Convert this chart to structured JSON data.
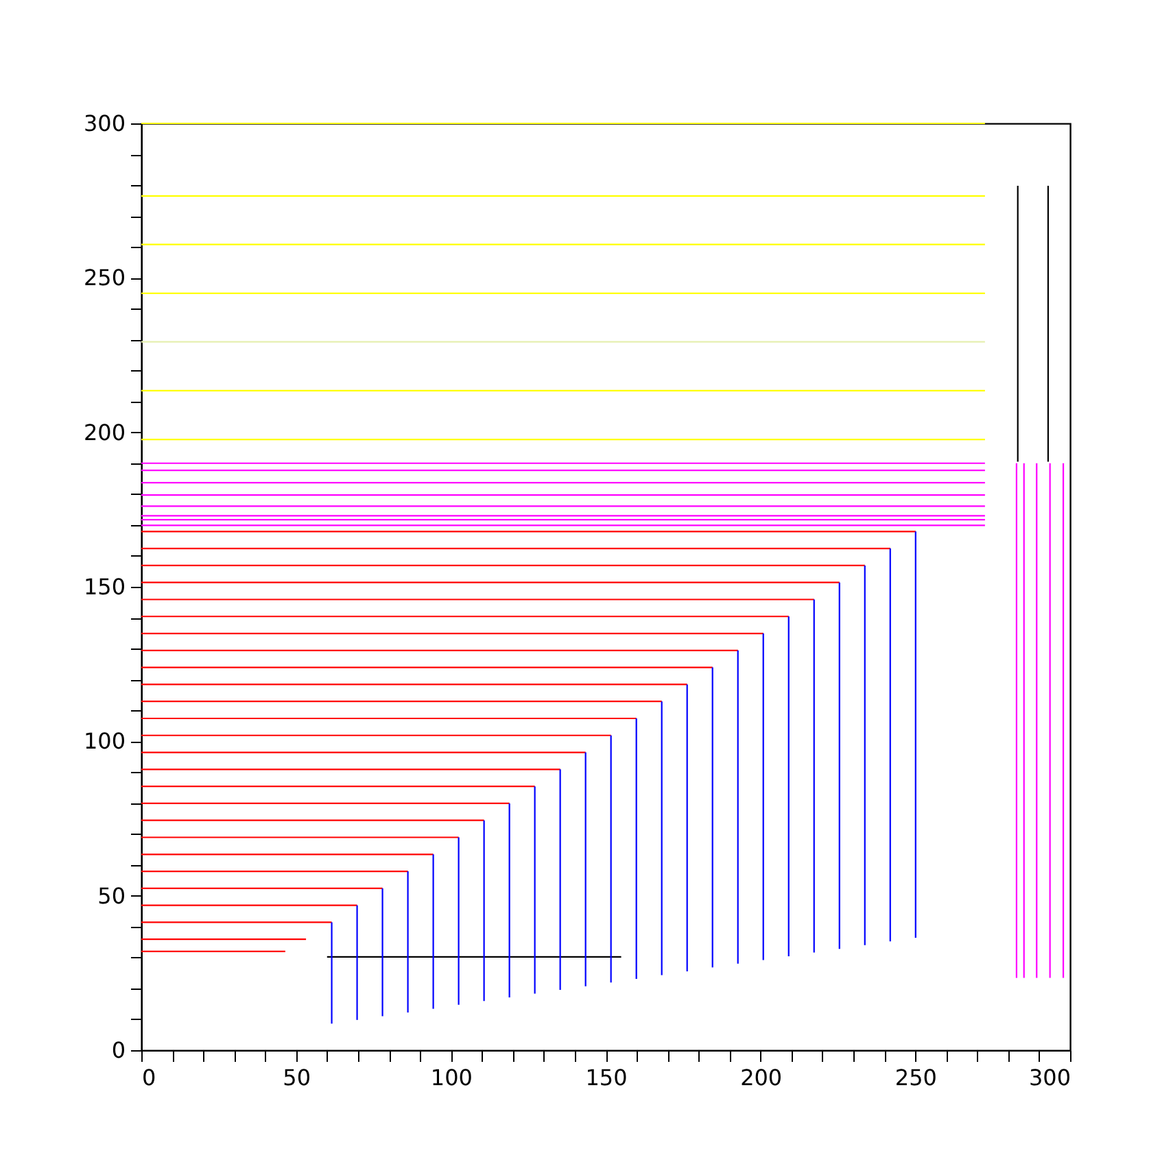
{
  "chart_data": {
    "type": "line",
    "xlim": [
      0,
      300
    ],
    "ylim": [
      0,
      300
    ],
    "xticks": [
      0,
      {
        "value": 10,
        "label": null
      },
      {
        "value": 20,
        "label": null
      },
      {
        "value": 30,
        "label": null
      },
      {
        "value": 40,
        "label": null
      },
      50,
      {
        "value": 60,
        "label": null
      },
      {
        "value": 70,
        "label": null
      },
      {
        "value": 80,
        "label": null
      },
      {
        "value": 90,
        "label": null
      },
      100,
      {
        "value": 110,
        "label": null
      },
      {
        "value": 120,
        "label": null
      },
      {
        "value": 130,
        "label": null
      },
      {
        "value": 140,
        "label": null
      },
      150,
      {
        "value": 160,
        "label": null
      },
      {
        "value": 170,
        "label": null
      },
      {
        "value": 180,
        "label": null
      },
      {
        "value": 190,
        "label": null
      },
      200,
      {
        "value": 210,
        "label": null
      },
      {
        "value": 220,
        "label": null
      },
      {
        "value": 230,
        "label": null
      },
      {
        "value": 240,
        "label": null
      },
      250,
      {
        "value": 260,
        "label": null
      },
      {
        "value": 270,
        "label": null
      },
      {
        "value": 280,
        "label": null
      },
      {
        "value": 290,
        "label": null
      },
      300
    ],
    "yticks": [
      0,
      {
        "value": 10,
        "label": null
      },
      {
        "value": 20,
        "label": null
      },
      {
        "value": 30,
        "label": null
      },
      {
        "value": 40,
        "label": null
      },
      50,
      {
        "value": 60,
        "label": null
      },
      {
        "value": 70,
        "label": null
      },
      {
        "value": 80,
        "label": null
      },
      {
        "value": 90,
        "label": null
      },
      100,
      {
        "value": 110,
        "label": null
      },
      {
        "value": 120,
        "label": null
      },
      {
        "value": 130,
        "label": null
      },
      {
        "value": 140,
        "label": null
      },
      150,
      {
        "value": 160,
        "label": null
      },
      {
        "value": 170,
        "label": null
      },
      {
        "value": 180,
        "label": null
      },
      {
        "value": 190,
        "label": null
      },
      200,
      {
        "value": 210,
        "label": null
      },
      {
        "value": 220,
        "label": null
      },
      {
        "value": 230,
        "label": null
      },
      {
        "value": 240,
        "label": null
      },
      250,
      {
        "value": 260,
        "label": null
      },
      {
        "value": 270,
        "label": null
      },
      {
        "value": 280,
        "label": null
      },
      {
        "value": 290,
        "label": null
      },
      300
    ],
    "grid": false,
    "legend": false,
    "marker": "none",
    "line_style": "solid",
    "series": [
      {
        "color": "#ffff00",
        "x": [
          0,
          272.5
        ],
        "values": [
          300,
          300
        ]
      },
      {
        "color": "#ffff00",
        "x": [
          0,
          272.5
        ],
        "values": [
          276.5,
          276.5
        ]
      },
      {
        "color": "#ffff00",
        "x": [
          0,
          272.5
        ],
        "values": [
          260.8,
          260.8
        ]
      },
      {
        "color": "#ffff00",
        "x": [
          0,
          272.5
        ],
        "values": [
          245,
          245
        ]
      },
      {
        "color": "#e6efb0",
        "x": [
          0,
          272.5
        ],
        "values": [
          229.3,
          229.3
        ]
      },
      {
        "color": "#ffff00",
        "x": [
          0,
          272.5
        ],
        "values": [
          213.5,
          213.5
        ]
      },
      {
        "color": "#ffff00",
        "x": [
          0,
          272.5
        ],
        "values": [
          197.7,
          197.7
        ]
      },
      {
        "color": "#ff00ff",
        "x": [
          0,
          272.5
        ],
        "values": [
          190,
          190
        ]
      },
      {
        "color": "#ff00ff",
        "x": [
          0,
          272.5
        ],
        "values": [
          187.7,
          187.7
        ]
      },
      {
        "color": "#ff00ff",
        "x": [
          0,
          272.5
        ],
        "values": [
          183.7,
          183.7
        ]
      },
      {
        "color": "#ff00ff",
        "x": [
          0,
          272.5
        ],
        "values": [
          179.7,
          179.7
        ]
      },
      {
        "color": "#ff00ff",
        "x": [
          0,
          272.5
        ],
        "values": [
          176.1,
          176.1
        ]
      },
      {
        "color": "#ff00ff",
        "x": [
          0,
          272.5
        ],
        "values": [
          173,
          173
        ]
      },
      {
        "color": "#ff00ff",
        "x": [
          0,
          272.5
        ],
        "values": [
          171.7,
          171.7
        ]
      },
      {
        "color": "#ff00ff",
        "x": [
          0,
          272.5
        ],
        "values": [
          169.9,
          169.9
        ]
      },
      {
        "color": "#000000",
        "x": [
          283.1,
          283.1
        ],
        "values": [
          279.8,
          190.5
        ]
      },
      {
        "color": "#000000",
        "x": [
          292.9,
          292.9
        ],
        "values": [
          279.8,
          190.5
        ]
      },
      {
        "color": "#ff00ff",
        "x": [
          282.7,
          282.7
        ],
        "values": [
          190,
          23.4
        ]
      },
      {
        "color": "#ff00ff",
        "x": [
          285.1,
          285.1
        ],
        "values": [
          190,
          23.4
        ]
      },
      {
        "color": "#ff00ff",
        "x": [
          289.2,
          289.2
        ],
        "values": [
          190,
          23.4
        ]
      },
      {
        "color": "#ff00ff",
        "x": [
          293.5,
          293.5
        ],
        "values": [
          190,
          23.4
        ]
      },
      {
        "color": "#ff00ff",
        "x": [
          297.8,
          297.8
        ],
        "values": [
          190,
          23.4
        ]
      },
      {
        "color": "#000000",
        "x": [
          60,
          155
        ],
        "values": [
          30.2,
          30.2
        ]
      },
      {
        "color": "#ff0000",
        "x": [
          0,
          46.5
        ],
        "values": [
          32,
          32
        ]
      },
      {
        "color": "#ff0000",
        "x": [
          0,
          53.2
        ],
        "values": [
          35.9,
          35.9
        ]
      },
      {
        "color": "#ff0000",
        "x": [
          0,
          61.5
        ],
        "values": [
          41.4,
          41.4
        ]
      },
      {
        "color": "#0000ff",
        "x": [
          61.5,
          61.5
        ],
        "values": [
          41.4,
          8.6
        ]
      },
      {
        "color": "#ff0000",
        "x": [
          0,
          69.7
        ],
        "values": [
          46.9,
          46.9
        ]
      },
      {
        "color": "#0000ff",
        "x": [
          69.7,
          69.7
        ],
        "values": [
          46.9,
          9.8
        ]
      },
      {
        "color": "#ff0000",
        "x": [
          0,
          77.9
        ],
        "values": [
          52.4,
          52.4
        ]
      },
      {
        "color": "#0000ff",
        "x": [
          77.9,
          77.9
        ],
        "values": [
          52.4,
          11
        ]
      },
      {
        "color": "#ff0000",
        "x": [
          0,
          86.1
        ],
        "values": [
          57.9,
          57.9
        ]
      },
      {
        "color": "#0000ff",
        "x": [
          86.1,
          86.1
        ],
        "values": [
          57.9,
          12.2
        ]
      },
      {
        "color": "#ff0000",
        "x": [
          0,
          94.3
        ],
        "values": [
          63.4,
          63.4
        ]
      },
      {
        "color": "#0000ff",
        "x": [
          94.3,
          94.3
        ],
        "values": [
          63.4,
          13.4
        ]
      },
      {
        "color": "#ff0000",
        "x": [
          0,
          102.5
        ],
        "values": [
          68.9,
          68.9
        ]
      },
      {
        "color": "#0000ff",
        "x": [
          102.5,
          102.5
        ],
        "values": [
          68.9,
          14.7
        ]
      },
      {
        "color": "#ff0000",
        "x": [
          0,
          110.7
        ],
        "values": [
          74.4,
          74.4
        ]
      },
      {
        "color": "#0000ff",
        "x": [
          110.7,
          110.7
        ],
        "values": [
          74.4,
          15.9
        ]
      },
      {
        "color": "#ff0000",
        "x": [
          0,
          118.9
        ],
        "values": [
          79.9,
          79.9
        ]
      },
      {
        "color": "#0000ff",
        "x": [
          118.9,
          118.9
        ],
        "values": [
          79.9,
          17.1
        ]
      },
      {
        "color": "#ff0000",
        "x": [
          0,
          127.1
        ],
        "values": [
          85.4,
          85.4
        ]
      },
      {
        "color": "#0000ff",
        "x": [
          127.1,
          127.1
        ],
        "values": [
          85.4,
          18.3
        ]
      },
      {
        "color": "#ff0000",
        "x": [
          0,
          135.3
        ],
        "values": [
          90.9,
          90.9
        ]
      },
      {
        "color": "#0000ff",
        "x": [
          135.3,
          135.3
        ],
        "values": [
          90.9,
          19.5
        ]
      },
      {
        "color": "#ff0000",
        "x": [
          0,
          143.5
        ],
        "values": [
          96.4,
          96.4
        ]
      },
      {
        "color": "#0000ff",
        "x": [
          143.5,
          143.5
        ],
        "values": [
          96.4,
          20.7
        ]
      },
      {
        "color": "#ff0000",
        "x": [
          0,
          151.7
        ],
        "values": [
          101.9,
          101.9
        ]
      },
      {
        "color": "#0000ff",
        "x": [
          151.7,
          151.7
        ],
        "values": [
          101.9,
          21.9
        ]
      },
      {
        "color": "#ff0000",
        "x": [
          0,
          159.9
        ],
        "values": [
          107.4,
          107.4
        ]
      },
      {
        "color": "#0000ff",
        "x": [
          159.9,
          159.9
        ],
        "values": [
          107.4,
          23.1
        ]
      },
      {
        "color": "#ff0000",
        "x": [
          0,
          168.1
        ],
        "values": [
          112.9,
          112.9
        ]
      },
      {
        "color": "#0000ff",
        "x": [
          168.1,
          168.1
        ],
        "values": [
          112.9,
          24.3
        ]
      },
      {
        "color": "#ff0000",
        "x": [
          0,
          176.3
        ],
        "values": [
          118.4,
          118.4
        ]
      },
      {
        "color": "#0000ff",
        "x": [
          176.3,
          176.3
        ],
        "values": [
          118.4,
          25.5
        ]
      },
      {
        "color": "#ff0000",
        "x": [
          0,
          184.5
        ],
        "values": [
          123.9,
          123.9
        ]
      },
      {
        "color": "#0000ff",
        "x": [
          184.5,
          184.5
        ],
        "values": [
          123.9,
          26.8
        ]
      },
      {
        "color": "#ff0000",
        "x": [
          0,
          192.7
        ],
        "values": [
          129.4,
          129.4
        ]
      },
      {
        "color": "#0000ff",
        "x": [
          192.7,
          192.7
        ],
        "values": [
          129.4,
          28
        ]
      },
      {
        "color": "#ff0000",
        "x": [
          0,
          200.9
        ],
        "values": [
          134.9,
          134.9
        ]
      },
      {
        "color": "#0000ff",
        "x": [
          200.9,
          200.9
        ],
        "values": [
          134.9,
          29.2
        ]
      },
      {
        "color": "#ff0000",
        "x": [
          0,
          209.1
        ],
        "values": [
          140.4,
          140.4
        ]
      },
      {
        "color": "#0000ff",
        "x": [
          209.1,
          209.1
        ],
        "values": [
          140.4,
          30.4
        ]
      },
      {
        "color": "#ff0000",
        "x": [
          0,
          217.3
        ],
        "values": [
          145.9,
          145.9
        ]
      },
      {
        "color": "#0000ff",
        "x": [
          217.3,
          217.3
        ],
        "values": [
          145.9,
          31.6
        ]
      },
      {
        "color": "#ff0000",
        "x": [
          0,
          225.5
        ],
        "values": [
          151.4,
          151.4
        ]
      },
      {
        "color": "#0000ff",
        "x": [
          225.5,
          225.5
        ],
        "values": [
          151.4,
          32.8
        ]
      },
      {
        "color": "#ff0000",
        "x": [
          0,
          233.7
        ],
        "values": [
          156.9,
          156.9
        ]
      },
      {
        "color": "#0000ff",
        "x": [
          233.7,
          233.7
        ],
        "values": [
          156.9,
          34
        ]
      },
      {
        "color": "#ff0000",
        "x": [
          0,
          241.9
        ],
        "values": [
          162.4,
          162.4
        ]
      },
      {
        "color": "#0000ff",
        "x": [
          241.9,
          241.9
        ],
        "values": [
          162.4,
          35.2
        ]
      },
      {
        "color": "#ff0000",
        "x": [
          0,
          250.1
        ],
        "values": [
          167.9,
          167.9
        ]
      },
      {
        "color": "#0000ff",
        "x": [
          250.1,
          250.1
        ],
        "values": [
          167.9,
          36.4
        ]
      }
    ]
  }
}
